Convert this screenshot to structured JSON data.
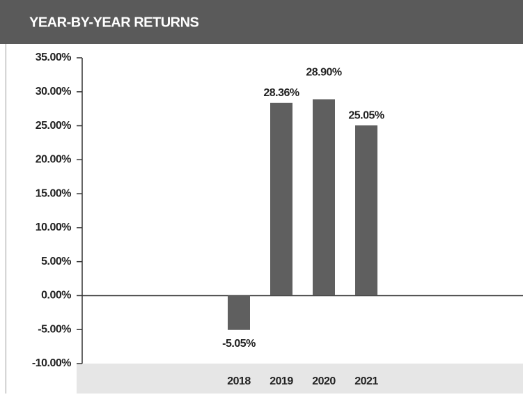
{
  "chart_data": {
    "type": "bar",
    "title": "YEAR-BY-YEAR RETURNS",
    "categories": [
      "2018",
      "2019",
      "2020",
      "2021"
    ],
    "values": [
      -5.05,
      28.36,
      28.9,
      25.05
    ],
    "value_labels": [
      "-5.05%",
      "28.36%",
      "28.90%",
      "25.05%"
    ],
    "color": "#5f5f5f",
    "ylim": [
      -10,
      35
    ],
    "yticks": [
      {
        "value": -10,
        "label": "-10.00%"
      },
      {
        "value": -5,
        "label": "-5.00%"
      },
      {
        "value": 0,
        "label": "0.00%"
      },
      {
        "value": 5,
        "label": "5.00%"
      },
      {
        "value": 10,
        "label": "10.00%"
      },
      {
        "value": 15,
        "label": "15.00%"
      },
      {
        "value": 20,
        "label": "20.00%"
      },
      {
        "value": 25,
        "label": "25.00%"
      },
      {
        "value": 30,
        "label": "30.00%"
      },
      {
        "value": 35,
        "label": "35.00%"
      }
    ]
  }
}
